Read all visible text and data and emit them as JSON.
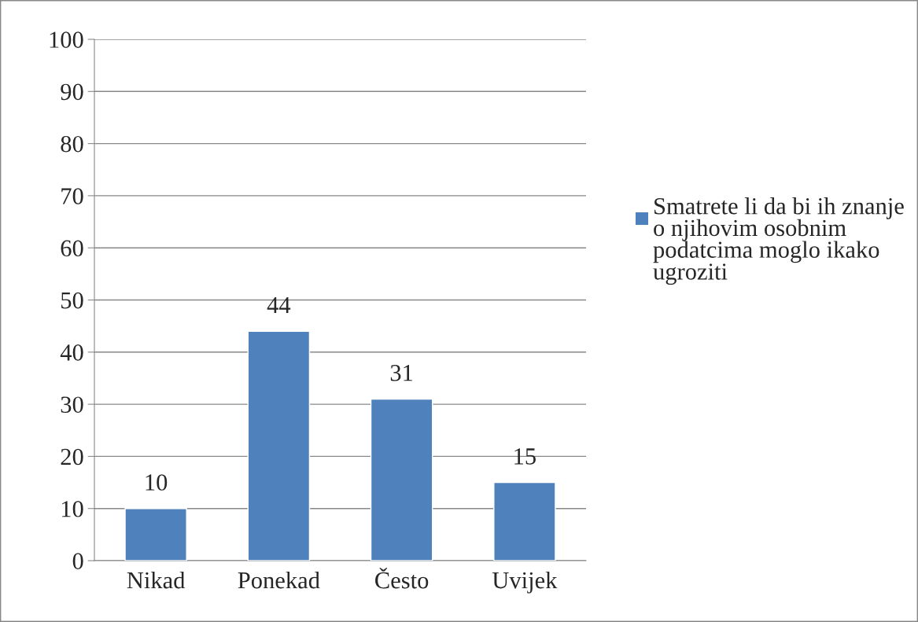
{
  "chart_data": {
    "type": "bar",
    "categories": [
      "Nikad",
      "Ponekad",
      "Često",
      "Uvijek"
    ],
    "series": [
      {
        "name": "Smatrete li da bi ih znanje o njihovim osobnim podatcima moglo ikako ugroziti",
        "color": "#4f81bd",
        "values": [
          10,
          44,
          31,
          15
        ]
      }
    ],
    "ylim": [
      0,
      100
    ],
    "yticks": [
      0,
      10,
      20,
      30,
      40,
      50,
      60,
      70,
      80,
      90,
      100
    ],
    "grid": "y",
    "legend": "right",
    "data_labels": true
  }
}
